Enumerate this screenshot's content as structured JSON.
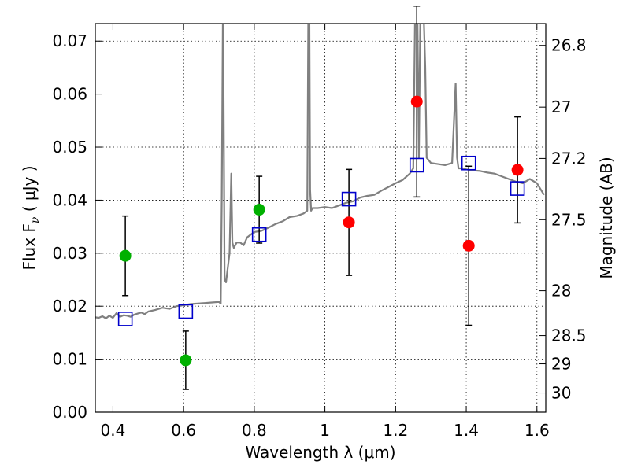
{
  "chart_data": {
    "type": "scatter",
    "xlabel": "Wavelength  λ (μm)",
    "ylabel": "Flux  F",
    "ylabel_sub": "ν",
    "ylabel_unit": "  ( μJy )",
    "y2label": "Magnitude (AB)",
    "xlim": [
      0.35,
      1.625
    ],
    "ylim": [
      0.0,
      0.0733
    ],
    "grid": true,
    "x_ticks": [
      {
        "v": 0.4,
        "label": "0.4"
      },
      {
        "v": 0.6,
        "label": "0.6"
      },
      {
        "v": 0.8,
        "label": "0.8"
      },
      {
        "v": 1.0,
        "label": "1"
      },
      {
        "v": 1.2,
        "label": "1.2"
      },
      {
        "v": 1.4,
        "label": "1.4"
      },
      {
        "v": 1.6,
        "label": "1.6"
      }
    ],
    "y_ticks": [
      {
        "v": 0.0,
        "label": "0.00"
      },
      {
        "v": 0.01,
        "label": "0.01"
      },
      {
        "v": 0.02,
        "label": "0.02"
      },
      {
        "v": 0.03,
        "label": "0.03"
      },
      {
        "v": 0.04,
        "label": "0.04"
      },
      {
        "v": 0.05,
        "label": "0.05"
      },
      {
        "v": 0.06,
        "label": "0.06"
      },
      {
        "v": 0.07,
        "label": "0.07"
      }
    ],
    "mag_ticks": [
      {
        "v": 26.8,
        "label": "26.8"
      },
      {
        "v": 27.0,
        "label": "27"
      },
      {
        "v": 27.2,
        "label": "27.2"
      },
      {
        "v": 27.5,
        "label": "27.5"
      },
      {
        "v": 28.0,
        "label": "28"
      },
      {
        "v": 28.5,
        "label": "28.5"
      },
      {
        "v": 29.0,
        "label": "29"
      },
      {
        "v": 30.0,
        "label": "30"
      }
    ],
    "model_spectrum": {
      "color": "#808080",
      "x": [
        0.35,
        0.36,
        0.37,
        0.38,
        0.39,
        0.4,
        0.41,
        0.42,
        0.43,
        0.44,
        0.45,
        0.46,
        0.47,
        0.48,
        0.49,
        0.5,
        0.52,
        0.54,
        0.56,
        0.58,
        0.6,
        0.62,
        0.64,
        0.66,
        0.68,
        0.7,
        0.705,
        0.708,
        0.711,
        0.713,
        0.716,
        0.72,
        0.73,
        0.735,
        0.738,
        0.742,
        0.75,
        0.76,
        0.77,
        0.78,
        0.8,
        0.82,
        0.84,
        0.86,
        0.88,
        0.9,
        0.92,
        0.94,
        0.95,
        0.953,
        0.956,
        0.958,
        0.961,
        0.965,
        0.98,
        1.0,
        1.02,
        1.04,
        1.06,
        1.08,
        1.1,
        1.12,
        1.14,
        1.16,
        1.18,
        1.2,
        1.22,
        1.24,
        1.25,
        1.255,
        1.258,
        1.262,
        1.266,
        1.27,
        1.276,
        1.28,
        1.284,
        1.288,
        1.3,
        1.32,
        1.34,
        1.36,
        1.37,
        1.374,
        1.378,
        1.39,
        1.4,
        1.42,
        1.44,
        1.46,
        1.48,
        1.5,
        1.52,
        1.54,
        1.56,
        1.58,
        1.6,
        1.62
      ],
      "y": [
        0.0179,
        0.0178,
        0.0181,
        0.0177,
        0.0182,
        0.0178,
        0.0187,
        0.018,
        0.0183,
        0.0182,
        0.018,
        0.0184,
        0.0186,
        0.0188,
        0.0185,
        0.019,
        0.0193,
        0.0197,
        0.0195,
        0.02,
        0.0202,
        0.0204,
        0.0205,
        0.0206,
        0.0207,
        0.0208,
        0.0205,
        0.04,
        0.074,
        0.06,
        0.025,
        0.0245,
        0.03,
        0.045,
        0.032,
        0.031,
        0.032,
        0.032,
        0.0315,
        0.033,
        0.034,
        0.0342,
        0.0348,
        0.0355,
        0.036,
        0.0368,
        0.037,
        0.0375,
        0.038,
        0.074,
        0.074,
        0.042,
        0.038,
        0.0385,
        0.0385,
        0.0387,
        0.0385,
        0.039,
        0.0395,
        0.0398,
        0.0405,
        0.0408,
        0.041,
        0.0418,
        0.0425,
        0.0432,
        0.0438,
        0.045,
        0.046,
        0.074,
        0.074,
        0.074,
        0.048,
        0.074,
        0.074,
        0.074,
        0.065,
        0.048,
        0.047,
        0.0468,
        0.0466,
        0.047,
        0.062,
        0.048,
        0.046,
        0.046,
        0.0458,
        0.0456,
        0.0455,
        0.0452,
        0.045,
        0.0445,
        0.044,
        0.0435,
        0.0432,
        0.044,
        0.0432,
        0.041
      ]
    },
    "model_photometry": {
      "color": "#0000cc",
      "points": [
        {
          "x": 0.435,
          "y": 0.0176
        },
        {
          "x": 0.606,
          "y": 0.019
        },
        {
          "x": 0.814,
          "y": 0.0335
        },
        {
          "x": 1.068,
          "y": 0.0402
        },
        {
          "x": 1.26,
          "y": 0.0466
        },
        {
          "x": 1.407,
          "y": 0.047
        },
        {
          "x": 1.545,
          "y": 0.0422
        }
      ]
    },
    "observed_optical": {
      "color": "#00b000",
      "points": [
        {
          "x": 0.435,
          "y": 0.0295,
          "err": 0.0075
        },
        {
          "x": 0.606,
          "y": 0.0098,
          "err": 0.0055
        },
        {
          "x": 0.814,
          "y": 0.0382,
          "err": 0.0063
        }
      ]
    },
    "observed_ir": {
      "color": "#ff0000",
      "points": [
        {
          "x": 1.068,
          "y": 0.0358,
          "err": 0.01
        },
        {
          "x": 1.26,
          "y": 0.0586,
          "err": 0.018
        },
        {
          "x": 1.407,
          "y": 0.0314,
          "err": 0.015
        },
        {
          "x": 1.545,
          "y": 0.0457,
          "err": 0.01
        }
      ]
    }
  }
}
